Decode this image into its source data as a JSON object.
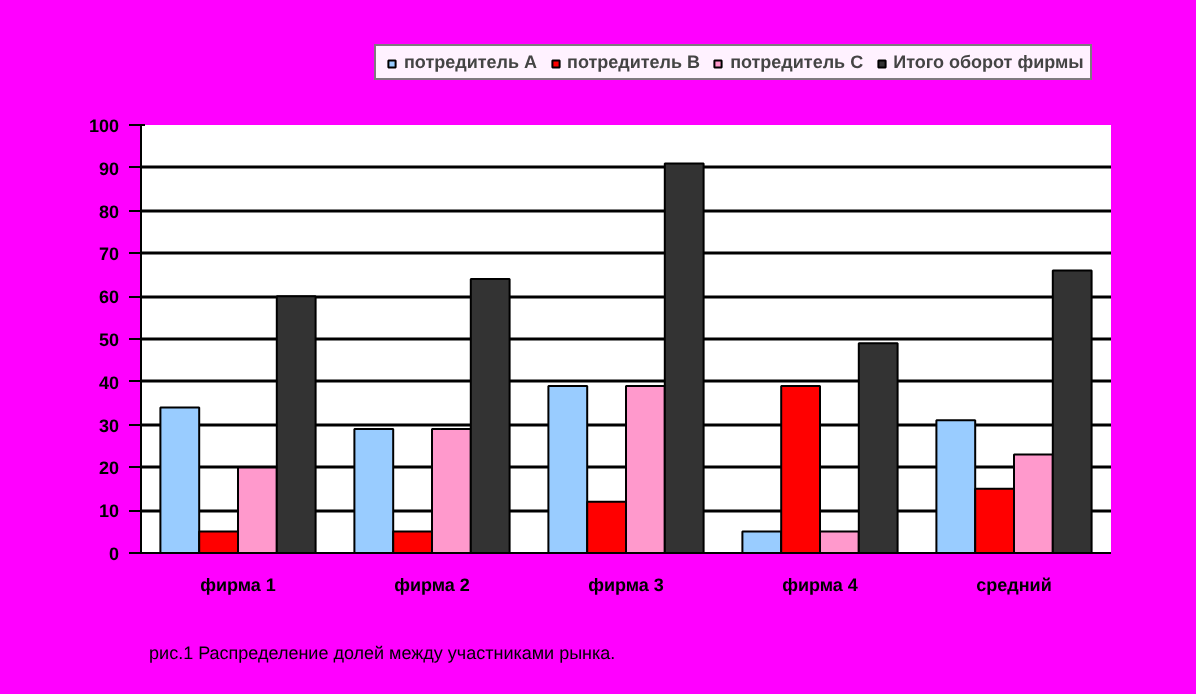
{
  "chart_data": {
    "type": "bar",
    "categories": [
      "фирма 1",
      "фирма 2",
      "фирма 3",
      "фирма 4",
      "средний"
    ],
    "series": [
      {
        "name": "потредитель А",
        "color": "#99ccff",
        "values": [
          34,
          29,
          39,
          5,
          31
        ]
      },
      {
        "name": "потредитель В",
        "color": "#ff0000",
        "values": [
          5,
          5,
          12,
          39,
          15
        ]
      },
      {
        "name": "потредитель С",
        "color": "#ff99cc",
        "values": [
          20,
          29,
          39,
          5,
          23
        ]
      },
      {
        "name": "Итого оборот фирмы",
        "color": "#333333",
        "values": [
          60,
          64,
          91,
          49,
          66
        ]
      }
    ],
    "ylim": [
      0,
      100
    ],
    "yticks": [
      0,
      10,
      20,
      30,
      40,
      50,
      60,
      70,
      80,
      90,
      100
    ],
    "grid": "y",
    "legend": "top",
    "annotations": [
      "рис.1 Распределение долей между участниками рынка."
    ]
  }
}
